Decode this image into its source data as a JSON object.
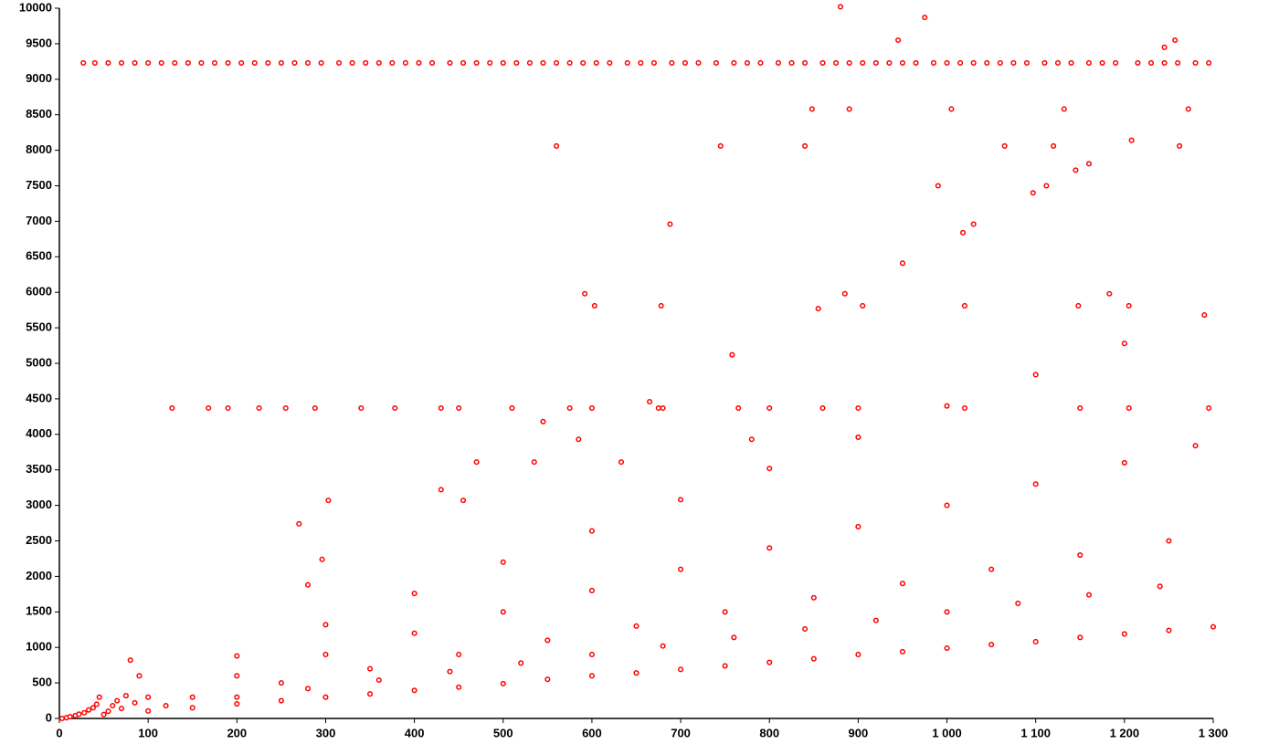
{
  "chart_data": {
    "type": "scatter",
    "color": "#ff0000",
    "xlim": [
      0,
      1300
    ],
    "ylim": [
      0,
      10000
    ],
    "xticks": [
      0,
      100,
      200,
      300,
      400,
      500,
      600,
      700,
      800,
      900,
      {
        "value": 1000,
        "label": "1 000"
      },
      {
        "value": 1100,
        "label": "1 100"
      },
      {
        "value": 1200,
        "label": "1 200"
      },
      {
        "value": 1300,
        "label": "1 300"
      }
    ],
    "yticks": [
      0,
      500,
      1000,
      1500,
      2000,
      2500,
      3000,
      3500,
      4000,
      4500,
      5000,
      5500,
      6000,
      6500,
      7000,
      7500,
      8000,
      8500,
      9000,
      9500,
      10000
    ],
    "x": [
      27,
      40,
      55,
      70,
      85,
      100,
      115,
      130,
      145,
      160,
      175,
      190,
      205,
      220,
      235,
      250,
      265,
      280,
      295,
      315,
      330,
      345,
      360,
      375,
      390,
      405,
      420,
      440,
      455,
      470,
      485,
      500,
      515,
      530,
      545,
      560,
      575,
      590,
      605,
      620,
      640,
      655,
      670,
      690,
      705,
      720,
      740,
      760,
      775,
      790,
      810,
      825,
      840,
      860,
      875,
      890,
      905,
      920,
      935,
      950,
      965,
      985,
      1000,
      1015,
      1030,
      1045,
      1060,
      1075,
      1090,
      1110,
      1125,
      1140,
      1160,
      1175,
      1190,
      1215,
      1230,
      1245,
      1260,
      1280,
      1295,
      880,
      975,
      945,
      1257,
      1245,
      127,
      168,
      190,
      225,
      255,
      288,
      340,
      378,
      430,
      450,
      510,
      575,
      600,
      675,
      680,
      765,
      800,
      860,
      900,
      1020,
      1150,
      1205,
      1295,
      50,
      100,
      150,
      200,
      250,
      300,
      350,
      400,
      450,
      500,
      550,
      600,
      650,
      700,
      750,
      800,
      850,
      900,
      950,
      1000,
      1050,
      1100,
      1150,
      1200,
      1250,
      1300,
      120,
      200,
      280,
      360,
      440,
      520,
      600,
      680,
      760,
      840,
      920,
      1000,
      1080,
      1160,
      1240,
      150,
      250,
      350,
      450,
      550,
      650,
      750,
      850,
      950,
      1050,
      1150,
      1250,
      100,
      200,
      300,
      400,
      500,
      600,
      700,
      800,
      900,
      1000,
      1100,
      1200,
      1280,
      200,
      300,
      400,
      500,
      600,
      700,
      800,
      900,
      1000,
      1100,
      1200,
      1290,
      560,
      745,
      840,
      1065,
      1120,
      1262,
      1208,
      848,
      890,
      1005,
      1132,
      1272,
      990,
      1097,
      1112,
      1145,
      1160,
      688,
      1030,
      1018,
      950,
      592,
      603,
      678,
      885,
      905,
      1020,
      1148,
      1183,
      1205,
      855,
      758,
      303,
      455,
      270,
      296,
      280,
      430,
      470,
      535,
      545,
      665,
      633,
      585,
      780,
      3,
      8,
      12,
      18,
      22,
      28,
      33,
      38,
      42,
      45,
      55,
      60,
      65,
      70,
      75,
      80,
      85,
      90
    ],
    "values": [
      9230,
      9230,
      9230,
      9230,
      9230,
      9230,
      9230,
      9230,
      9230,
      9230,
      9230,
      9230,
      9230,
      9230,
      9230,
      9230,
      9230,
      9230,
      9230,
      9230,
      9230,
      9230,
      9230,
      9230,
      9230,
      9230,
      9230,
      9230,
      9230,
      9230,
      9230,
      9230,
      9230,
      9230,
      9230,
      9230,
      9230,
      9230,
      9230,
      9230,
      9230,
      9230,
      9230,
      9230,
      9230,
      9230,
      9230,
      9230,
      9230,
      9230,
      9230,
      9230,
      9230,
      9230,
      9230,
      9230,
      9230,
      9230,
      9230,
      9230,
      9230,
      9230,
      9230,
      9230,
      9230,
      9230,
      9230,
      9230,
      9230,
      9230,
      9230,
      9230,
      9230,
      9230,
      9230,
      9230,
      9230,
      9230,
      9230,
      9230,
      9230,
      10020,
      9870,
      9550,
      9550,
      9450,
      4370,
      4370,
      4370,
      4370,
      4370,
      4370,
      4370,
      4370,
      4370,
      4370,
      4370,
      4370,
      4370,
      4370,
      4370,
      4370,
      4370,
      4370,
      4370,
      4370,
      4370,
      4370,
      4370,
      55,
      105,
      150,
      205,
      250,
      300,
      345,
      395,
      440,
      490,
      550,
      600,
      640,
      690,
      740,
      790,
      840,
      900,
      940,
      990,
      1040,
      1080,
      1140,
      1190,
      1240,
      1290,
      180,
      300,
      420,
      540,
      660,
      780,
      900,
      1020,
      1140,
      1260,
      1380,
      1500,
      1620,
      1740,
      1860,
      300,
      500,
      700,
      900,
      1100,
      1300,
      1500,
      1700,
      1900,
      2100,
      2300,
      2500,
      300,
      600,
      900,
      1200,
      1500,
      1800,
      2100,
      2400,
      2700,
      3000,
      3300,
      3600,
      3840,
      880,
      1320,
      1760,
      2200,
      2640,
      3080,
      3520,
      3960,
      4400,
      4840,
      5280,
      5680,
      8060,
      8060,
      8060,
      8060,
      8060,
      8060,
      8140,
      8580,
      8580,
      8580,
      8580,
      8580,
      7500,
      7400,
      7500,
      7720,
      7810,
      6960,
      6960,
      6840,
      6410,
      5980,
      5810,
      5810,
      5980,
      5810,
      5810,
      5810,
      5980,
      5810,
      5770,
      5120,
      3070,
      3070,
      2740,
      2240,
      1880,
      3220,
      3610,
      3610,
      4180,
      4460,
      3610,
      3930,
      3930,
      0,
      10,
      25,
      40,
      60,
      80,
      120,
      150,
      200,
      300,
      100,
      180,
      250,
      140,
      320,
      820,
      220,
      600
    ]
  }
}
